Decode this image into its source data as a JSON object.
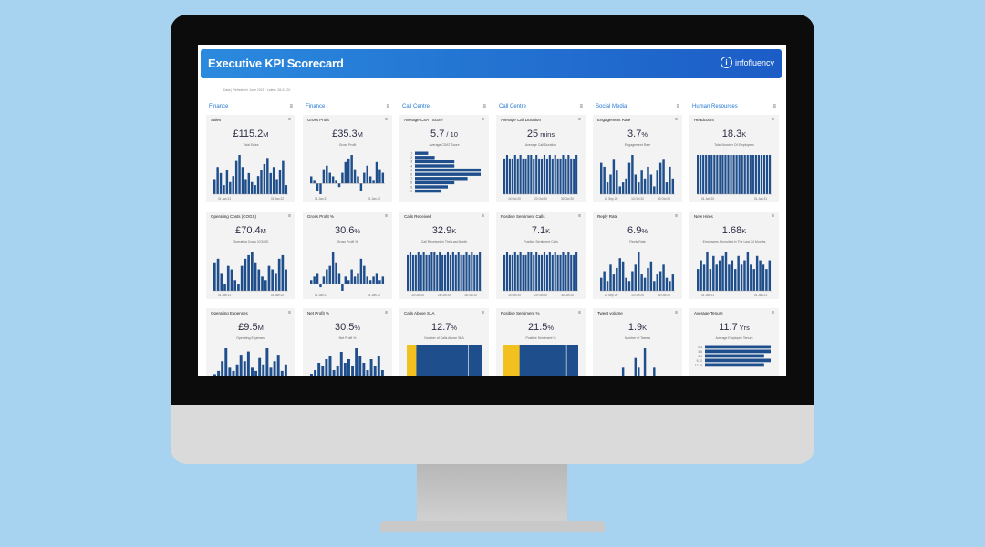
{
  "header": {
    "title": "Executive KPI Scorecard",
    "logo_text": "infofluency",
    "logo_mark": "i"
  },
  "meta_line": "Data | Refreshed: June 2021 · Latest: 28-03-20",
  "colors": {
    "bar": "#1f4e8c",
    "accent": "#f2c01f",
    "header_start": "#2b8ade",
    "header_end": "#1c5cc6",
    "title_blue": "#1f76d2",
    "card_bg": "#f3f3f3"
  },
  "columns": [
    {
      "title": "Finance",
      "cards": [
        {
          "title": "Sales",
          "value": "£115.2",
          "unit": "M",
          "subtitle": "Total Sales",
          "chart": {
            "type": "bar",
            "values": [
              5,
              9,
              7,
              3,
              8,
              4,
              6,
              11,
              13,
              9,
              5,
              7,
              4,
              3,
              6,
              8,
              10,
              12,
              7,
              9,
              5,
              8,
              11,
              3
            ],
            "axis": [
              "01 Jan 21",
              "01 Jan 22"
            ]
          }
        },
        {
          "title": "Operating Costs (COGS)",
          "value": "£70.4",
          "unit": "M",
          "subtitle": "Operating Costs (COGS)",
          "chart": {
            "type": "bar",
            "values": [
              8,
              9,
              5,
              2,
              7,
              6,
              3,
              2,
              7,
              9,
              10,
              11,
              8,
              6,
              4,
              3,
              7,
              6,
              5,
              9,
              10,
              6
            ],
            "axis": [
              "01 Jan 21",
              "01 Jan 22"
            ]
          }
        },
        {
          "title": "Operating Expenses",
          "value": "£9.5",
          "unit": "M",
          "subtitle": "Operating Expenses",
          "chart": {
            "type": "bar",
            "values": [
              1,
              2,
              5,
              9,
              3,
              2,
              4,
              7,
              5,
              8,
              3,
              2,
              6,
              4,
              9,
              3,
              5,
              7,
              2,
              4
            ],
            "axis": []
          }
        }
      ]
    },
    {
      "title": "Finance",
      "cards": [
        {
          "title": "Gross Profit",
          "value": "£35.3",
          "unit": "M",
          "subtitle": "Gross Profit",
          "chart": {
            "type": "bar",
            "values": [
              2,
              1,
              -2,
              -3,
              4,
              5,
              3,
              2,
              1,
              -1,
              3,
              6,
              7,
              8,
              4,
              2,
              -2,
              3,
              5,
              2,
              1,
              6,
              4,
              3
            ],
            "axis": [
              "01 Jan 21",
              "01 Jan 22"
            ]
          }
        },
        {
          "title": "Gross Profit %",
          "value": "30.6",
          "unit": "%",
          "subtitle": "Gross Profit %",
          "chart": {
            "type": "bar",
            "values": [
              1,
              2,
              3,
              -1,
              2,
              4,
              5,
              9,
              6,
              3,
              -2,
              2,
              1,
              4,
              2,
              3,
              7,
              5,
              2,
              1,
              2,
              3,
              1,
              2
            ],
            "axis": [
              "01 Jan 21",
              "01 Jan 22"
            ]
          }
        },
        {
          "title": "Net Profit %",
          "value": "30.5",
          "unit": "%",
          "subtitle": "Net Profit %",
          "chart": {
            "type": "bar",
            "values": [
              1,
              2,
              4,
              3,
              5,
              6,
              2,
              3,
              7,
              4,
              5,
              3,
              8,
              6,
              4,
              2,
              5,
              3,
              6,
              2
            ],
            "axis": []
          }
        }
      ]
    },
    {
      "title": "Call Centre",
      "cards": [
        {
          "title": "Average CSAT Score",
          "value": "5.7",
          "unit": " / 10",
          "subtitle": "Average CSAT Score",
          "chart": {
            "type": "hbar",
            "labels": [
              "1",
              "2",
              "3",
              "4",
              "5",
              "6",
              "7",
              "8",
              "9",
              "10"
            ],
            "values": [
              2,
              3,
              6,
              6,
              10,
              10,
              8,
              6,
              5,
              4
            ],
            "axis": []
          }
        },
        {
          "title": "Calls Received",
          "value": "32.9",
          "unit": "K",
          "subtitle": "Call Received in The Last Month",
          "chart": {
            "type": "bar",
            "values": [
              10,
              11,
              10,
              10,
              11,
              10,
              11,
              10,
              10,
              11,
              11,
              10,
              11,
              10,
              10,
              11,
              10,
              11,
              10,
              11,
              10,
              10,
              11,
              10,
              11,
              10,
              10,
              11
            ],
            "axis": [
              "14 Oct 20",
              "28 Oct 20",
              "16 Oct 20"
            ]
          }
        },
        {
          "title": "Calls Above SLA",
          "value": "12.7",
          "unit": "%",
          "subtitle": "Number of Calls Above SLA",
          "chart": {
            "type": "stack",
            "values": [
              12.7,
              87.3
            ],
            "axis": []
          }
        }
      ]
    },
    {
      "title": "Call Centre",
      "cards": [
        {
          "title": "Average Call Duration",
          "value": "25",
          "unit": " mins",
          "subtitle": "Average Call Duration",
          "chart": {
            "type": "bar",
            "values": [
              10,
              11,
              10,
              10,
              11,
              10,
              11,
              10,
              10,
              11,
              11,
              10,
              11,
              10,
              10,
              11,
              10,
              11,
              10,
              11,
              10,
              10,
              11,
              10,
              11,
              10,
              10,
              11
            ],
            "axis": [
              "10 Oct 20",
              "20 Oct 20",
              "30 Oct 20"
            ]
          }
        },
        {
          "title": "Positive Sentiment Calls",
          "value": "7.1",
          "unit": "K",
          "subtitle": "Positive Sentiment Calls",
          "chart": {
            "type": "bar",
            "values": [
              10,
              11,
              10,
              10,
              11,
              10,
              11,
              10,
              10,
              11,
              11,
              10,
              11,
              10,
              10,
              11,
              10,
              11,
              10,
              11,
              10,
              10,
              11,
              10,
              11,
              10,
              10,
              11
            ],
            "axis": [
              "10 Oct 20",
              "20 Oct 20",
              "30 Oct 20"
            ]
          }
        },
        {
          "title": "Positive Sentiment %",
          "value": "21.5",
          "unit": "%",
          "subtitle": "Positive Sentiment %",
          "chart": {
            "type": "stack",
            "values": [
              21.5,
              78.5
            ],
            "axis": []
          }
        }
      ]
    },
    {
      "title": "Social Media",
      "cards": [
        {
          "title": "Engagement Rate",
          "value": "3.7",
          "unit": "%",
          "subtitle": "Engagement Rate",
          "chart": {
            "type": "bar",
            "values": [
              8,
              7,
              3,
              5,
              9,
              6,
              2,
              3,
              4,
              8,
              10,
              5,
              3,
              6,
              4,
              7,
              5,
              2,
              6,
              8,
              9,
              3,
              7,
              4
            ],
            "axis": [
              "24 Sep 20",
              "13 Oct 20",
              "30 Oct 20"
            ]
          }
        },
        {
          "title": "Reply Rate",
          "value": "6.9",
          "unit": "%",
          "subtitle": "Reply Rate",
          "chart": {
            "type": "bar",
            "values": [
              4,
              6,
              3,
              8,
              5,
              7,
              10,
              9,
              4,
              3,
              6,
              8,
              12,
              5,
              4,
              7,
              9,
              3,
              5,
              6,
              8,
              4,
              3,
              5
            ],
            "axis": [
              "24 Sep 20",
              "13 Oct 20",
              "30 Oct 20"
            ]
          }
        },
        {
          "title": "Tweet volume",
          "value": "1.9",
          "unit": "K",
          "subtitle": "Number of Tweets",
          "chart": {
            "type": "bar",
            "values": [
              0,
              0,
              0,
              0,
              0,
              0,
              0,
              1,
              0,
              0,
              0,
              2,
              1,
              0,
              3,
              0,
              0,
              1,
              0,
              0,
              0,
              0,
              0,
              0
            ],
            "axis": []
          }
        }
      ]
    },
    {
      "title": "Human Resources",
      "cards": [
        {
          "title": "Headcount",
          "value": "18.3",
          "unit": "K",
          "subtitle": "Total Number Of Employees",
          "chart": {
            "type": "bar",
            "values": [
              9,
              9,
              9,
              9,
              9,
              9,
              9,
              9,
              9,
              9,
              9,
              9,
              9,
              9,
              9,
              9,
              9,
              9,
              9,
              9,
              9,
              9,
              9,
              9,
              9,
              9,
              9
            ],
            "axis": [
              "01 Jan 20",
              "01 Jan 21"
            ]
          }
        },
        {
          "title": "New Hires",
          "value": "1.68",
          "unit": "K",
          "subtitle": "Employees Recruited in The Last 24 Months",
          "chart": {
            "type": "bar",
            "values": [
              5,
              7,
              6,
              9,
              5,
              8,
              6,
              7,
              8,
              9,
              6,
              7,
              5,
              8,
              6,
              7,
              9,
              6,
              5,
              8,
              7,
              6,
              5,
              7
            ],
            "axis": [
              "01 Jan 21",
              "01 Jan 21"
            ]
          }
        },
        {
          "title": "Average Tenure",
          "value": "11.7",
          "unit": " Yrs",
          "subtitle": "Average Employee Tenure",
          "chart": {
            "type": "hbar",
            "labels": [
              "0-3",
              "3-6",
              "6-9",
              "9-12",
              "12-15"
            ],
            "values": [
              10,
              10,
              9,
              10,
              9
            ],
            "axis": []
          }
        }
      ]
    }
  ]
}
